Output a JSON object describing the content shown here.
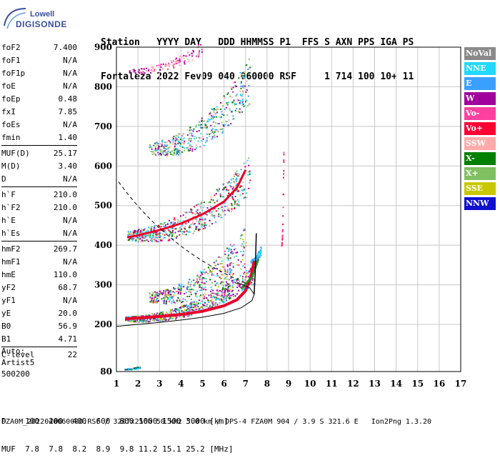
{
  "logo": {
    "line1": "Lowell",
    "line2": "DIGISONDE"
  },
  "header": {
    "row1": "Station   YYYY DAY   DDD HHMMSS P1  FFS S AXN PPS IGA PS",
    "row2": "Fortaleza 2022 Fev09 040 060000 RSF     1 714 100 10+ 11"
  },
  "params": [
    [
      {
        "name": "foF2",
        "value": "7.400"
      },
      {
        "name": "foF1",
        "value": "N/A"
      },
      {
        "name": "foF1p",
        "value": "N/A"
      },
      {
        "name": "foE",
        "value": "N/A"
      },
      {
        "name": "foEp",
        "value": "0.48"
      },
      {
        "name": "fxI",
        "value": "7.85"
      },
      {
        "name": "foEs",
        "value": "N/A"
      },
      {
        "name": "fmin",
        "value": "1.40"
      }
    ],
    [
      {
        "name": "MUF(D)",
        "value": "25.17"
      },
      {
        "name": "M(D)",
        "value": "3.40"
      },
      {
        "name": "D",
        "value": "N/A"
      }
    ],
    [
      {
        "name": "h`F",
        "value": "210.0"
      },
      {
        "name": "h`F2",
        "value": "210.0"
      },
      {
        "name": "h`E",
        "value": "N/A"
      },
      {
        "name": "h`Es",
        "value": "N/A"
      }
    ],
    [
      {
        "name": "hmF2",
        "value": "269.7"
      },
      {
        "name": "hmF1",
        "value": "N/A"
      },
      {
        "name": "hmE",
        "value": "110.0"
      },
      {
        "name": "yF2",
        "value": "68.7"
      },
      {
        "name": "yF1",
        "value": "N/A"
      },
      {
        "name": "yE",
        "value": "20.0"
      },
      {
        "name": "B0",
        "value": "56.9"
      },
      {
        "name": "B1",
        "value": "4.71"
      }
    ],
    [
      {
        "name": "C-level",
        "value": "22"
      }
    ]
  ],
  "auto": [
    "Auto:",
    "Artist5",
    "500200"
  ],
  "ionogram": {
    "y_ticks": [
      "900",
      "800",
      "700",
      "600",
      "500",
      "400",
      "300",
      "200",
      "80"
    ],
    "x_ticks": [
      "1",
      "2",
      "3",
      "4",
      "5",
      "6",
      "7",
      "8",
      "9",
      "10",
      "11",
      "12",
      "13",
      "14",
      "15",
      "16",
      "17"
    ],
    "x_range": [
      1,
      17
    ],
    "y_range": [
      80,
      900
    ],
    "y_scale": "piecewise-linear, 80-200 compressed",
    "grid": true,
    "trace_color": "#e8002a",
    "profile_color": "#000000"
  },
  "legend": [
    {
      "label": "NoVal",
      "color": "#8a8a8a"
    },
    {
      "label": "NNE",
      "color": "#22d8ff"
    },
    {
      "label": "E",
      "color": "#3aa0ff"
    },
    {
      "label": "W",
      "color": "#a0009c"
    },
    {
      "label": "Vo-",
      "color": "#ff40a0"
    },
    {
      "label": "Vo+",
      "color": "#ff0033"
    },
    {
      "label": "SSW",
      "color": "#ffaaaa"
    },
    {
      "label": "X-",
      "color": "#008000"
    },
    {
      "label": "X+",
      "color": "#80c060"
    },
    {
      "label": "SSE",
      "color": "#c8c800"
    },
    {
      "label": "NNW",
      "color": "#1010d0"
    }
  ],
  "muf_table": {
    "row1": "D    100  200  400  600  800 1000 1500 3000 [km]",
    "row2": "MUF  7.8  7.8  8.2  8.9  9.8 11.2 15.1 25.2 [MHz]"
  },
  "footer": "FZA0M_2022040060000.RSF / 320fx256h 50 kHz 5.0 km / DPS-4 FZA0M 904 / 3.9 S 321.6 E   Ion2Png 1.3.20"
}
